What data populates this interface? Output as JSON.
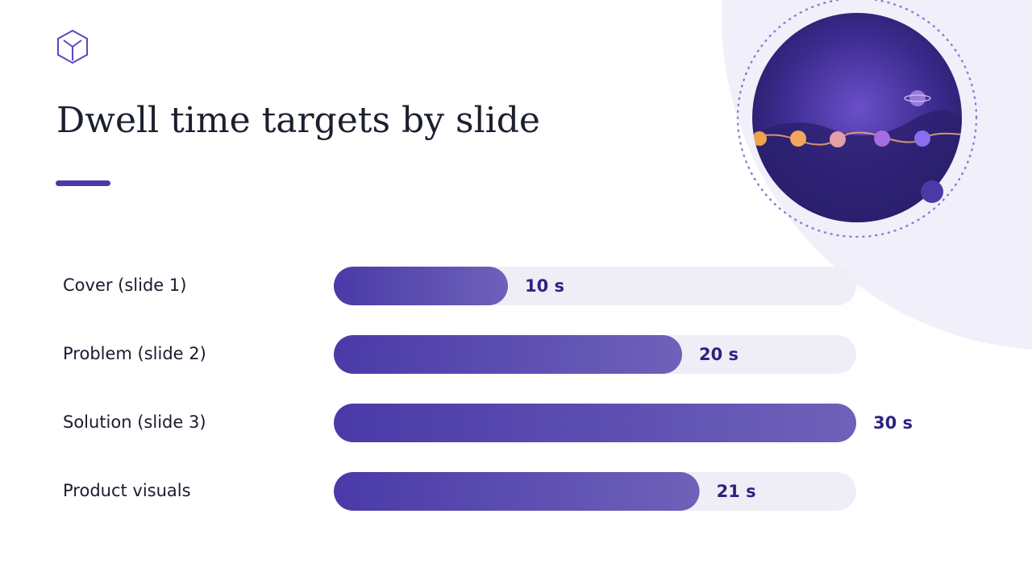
{
  "chart_data": {
    "type": "bar",
    "title": "Dwell time targets by slide",
    "categories": [
      "Cover (slide 1)",
      "Problem (slide 2)",
      "Solution (slide 3)",
      "Product visuals"
    ],
    "values": [
      10,
      20,
      30,
      21
    ],
    "value_labels": [
      "10 s",
      "20 s",
      "30 s",
      "21 s"
    ],
    "color": "#4a3aa8",
    "xlim": [
      0,
      30
    ]
  }
}
